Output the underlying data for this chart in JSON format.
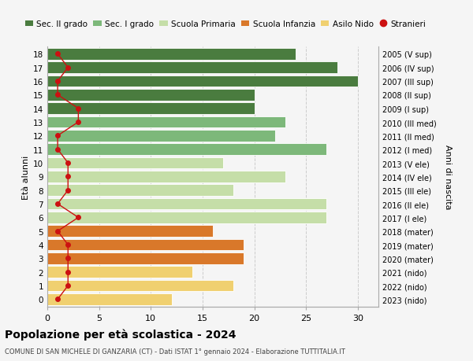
{
  "ages": [
    18,
    17,
    16,
    15,
    14,
    13,
    12,
    11,
    10,
    9,
    8,
    7,
    6,
    5,
    4,
    3,
    2,
    1,
    0
  ],
  "years": [
    "2005 (V sup)",
    "2006 (IV sup)",
    "2007 (III sup)",
    "2008 (II sup)",
    "2009 (I sup)",
    "2010 (III med)",
    "2011 (II med)",
    "2012 (I med)",
    "2013 (V ele)",
    "2014 (IV ele)",
    "2015 (III ele)",
    "2016 (II ele)",
    "2017 (I ele)",
    "2018 (mater)",
    "2019 (mater)",
    "2020 (mater)",
    "2021 (nido)",
    "2022 (nido)",
    "2023 (nido)"
  ],
  "bar_values": [
    24,
    28,
    30,
    20,
    20,
    23,
    22,
    27,
    17,
    23,
    18,
    27,
    27,
    16,
    19,
    19,
    14,
    18,
    12
  ],
  "bar_colors": [
    "#4a7c3f",
    "#4a7c3f",
    "#4a7c3f",
    "#4a7c3f",
    "#4a7c3f",
    "#7db87a",
    "#7db87a",
    "#7db87a",
    "#c5dea8",
    "#c5dea8",
    "#c5dea8",
    "#c5dea8",
    "#c5dea8",
    "#d9782a",
    "#d9782a",
    "#d9782a",
    "#f0d070",
    "#f0d070",
    "#f0d070"
  ],
  "stranieri": [
    1,
    2,
    1,
    1,
    3,
    3,
    1,
    1,
    2,
    2,
    2,
    1,
    3,
    1,
    2,
    2,
    2,
    2,
    1
  ],
  "legend_labels": [
    "Sec. II grado",
    "Sec. I grado",
    "Scuola Primaria",
    "Scuola Infanzia",
    "Asilo Nido",
    "Stranieri"
  ],
  "legend_colors": [
    "#4a7c3f",
    "#7db87a",
    "#c5dea8",
    "#d9782a",
    "#f0d070",
    "#cc1111"
  ],
  "ylabel_left": "Età alunni",
  "ylabel_right": "Anni di nascita",
  "title": "Popolazione per età scolastica - 2024",
  "subtitle": "COMUNE DI SAN MICHELE DI GANZARIA (CT) - Dati ISTAT 1° gennaio 2024 - Elaborazione TUTTITALIA.IT",
  "xlim": [
    0,
    32
  ],
  "background_color": "#f5f5f5",
  "grid_color": "#cccccc",
  "stranieri_color": "#cc1111",
  "bar_height": 0.85
}
